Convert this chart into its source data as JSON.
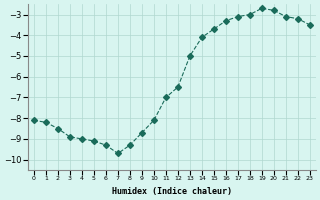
{
  "xlabel": "Humidex (Indice chaleur)",
  "ylabel": "",
  "x": [
    0,
    1,
    2,
    3,
    4,
    5,
    6,
    7,
    8,
    9,
    10,
    11,
    12,
    13,
    14,
    15,
    16,
    17,
    18,
    19,
    20,
    21,
    22,
    23
  ],
  "y": [
    -8.1,
    -8.2,
    -8.5,
    -8.9,
    -9.0,
    -9.1,
    -9.3,
    -9.7,
    -9.3,
    -8.7,
    -8.1,
    -7.0,
    -6.5,
    -5.0,
    -4.1,
    -3.7,
    -3.3,
    -3.1,
    -3.0,
    -2.7,
    -2.8,
    -3.1,
    -3.2,
    -3.5
  ],
  "line_color": "#1a6b5a",
  "marker": "D",
  "marker_size": 3,
  "bg_color": "#d8f5f0",
  "grid_color": "#b0d8d0",
  "ylim": [
    -10.5,
    -2.5
  ],
  "yticks": [
    -10,
    -9,
    -8,
    -7,
    -6,
    -5,
    -4,
    -3
  ],
  "xticks": [
    0,
    1,
    2,
    3,
    4,
    5,
    6,
    7,
    8,
    9,
    10,
    11,
    12,
    13,
    14,
    15,
    16,
    17,
    18,
    19,
    20,
    21,
    22,
    23
  ],
  "xlim": [
    -0.5,
    23.5
  ],
  "linewidth": 0.8
}
